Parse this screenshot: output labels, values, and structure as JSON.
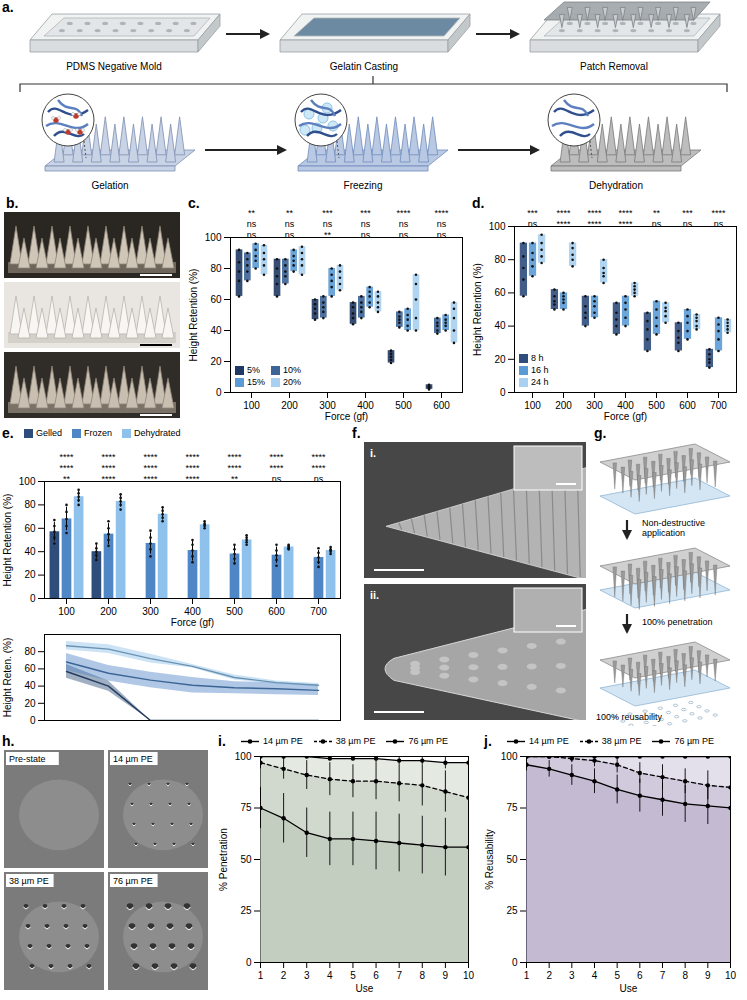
{
  "figure": {
    "a": {
      "panel": "a.",
      "steps": [
        "PDMS Negative Mold",
        "Gelatin Casting",
        "Patch Removal"
      ],
      "stages": [
        "Gelation",
        "Freezing",
        "Dehydration"
      ]
    },
    "b": {
      "panel": "b."
    },
    "f": {
      "panel": "f.",
      "images": [
        "i.",
        "ii."
      ]
    },
    "g": {
      "panel": "g.",
      "steps": [
        "Non-destructive application",
        "100% penetration",
        "100% reusability"
      ]
    },
    "h": {
      "panel": "h.",
      "images": [
        "Pre-state",
        "14 µm PE",
        "38 µm PE",
        "76 µm PE"
      ]
    }
  },
  "chart_data": [
    {
      "panel": "c.",
      "type": "violin",
      "xlabel": "Force (gf)",
      "ylabel": "Height Retention (%)",
      "categories": [
        100,
        200,
        300,
        400,
        500,
        600
      ],
      "ylim": [
        0,
        100
      ],
      "yticks": [
        0,
        20,
        40,
        60,
        80,
        100
      ],
      "legend": "bottom-left",
      "series": [
        {
          "name": "5%",
          "color": "#1f3864",
          "points": [
            [
              62,
              72,
              78,
              84,
              92
            ],
            [
              62,
              70,
              75,
              80,
              86
            ],
            [
              47,
              51,
              54,
              57,
              60
            ],
            [
              44,
              48,
              51,
              55,
              58
            ],
            [
              19,
              21,
              23,
              25,
              27
            ],
            [
              2,
              3,
              3,
              4,
              5
            ]
          ]
        },
        {
          "name": "10%",
          "color": "#3c6496",
          "points": [
            [
              72,
              78,
              82,
              86,
              90
            ],
            [
              70,
              75,
              78,
              82,
              86
            ],
            [
              48,
              52,
              55,
              58,
              62
            ],
            [
              48,
              52,
              55,
              58,
              62
            ],
            [
              42,
              45,
              47,
              49,
              52
            ],
            [
              38,
              40,
              43,
              45,
              48
            ]
          ]
        },
        {
          "name": "15%",
          "color": "#5b9bd5",
          "points": [
            [
              80,
              85,
              88,
              92,
              96
            ],
            [
              78,
              82,
              85,
              88,
              92
            ],
            [
              62,
              68,
              72,
              76,
              80
            ],
            [
              55,
              58,
              62,
              65,
              68
            ],
            [
              40,
              43,
              47,
              50,
              54
            ],
            [
              40,
              43,
              45,
              47,
              50
            ]
          ]
        },
        {
          "name": "20%",
          "color": "#a9d0f0",
          "points": [
            [
              76,
              82,
              86,
              90,
              95
            ],
            [
              76,
              82,
              86,
              90,
              94
            ],
            [
              66,
              70,
              74,
              78,
              82
            ],
            [
              52,
              55,
              58,
              62,
              65
            ],
            [
              40,
              48,
              60,
              70,
              76
            ],
            [
              32,
              40,
              48,
              54,
              58
            ]
          ]
        }
      ],
      "significance": [
        [
          "**",
          "ns",
          "ns"
        ],
        [
          "**",
          "ns",
          "ns"
        ],
        [
          "***",
          "ns",
          "**"
        ],
        [
          "***",
          "ns",
          "ns"
        ],
        [
          "****",
          "ns",
          "ns"
        ],
        [
          "****",
          "ns",
          "ns"
        ]
      ]
    },
    {
      "panel": "d.",
      "type": "violin",
      "xlabel": "Force (gf)",
      "ylabel": "Height Retention (%)",
      "categories": [
        100,
        200,
        300,
        400,
        500,
        600,
        700
      ],
      "ylim": [
        0,
        100
      ],
      "yticks": [
        0,
        20,
        40,
        60,
        80,
        100
      ],
      "legend": "bottom-left",
      "series": [
        {
          "name": "8 h",
          "color": "#2e4d7b",
          "points": [
            [
              58,
              68,
              75,
              82,
              90
            ],
            [
              50,
              53,
              55,
              58,
              62
            ],
            [
              40,
              45,
              48,
              52,
              58
            ],
            [
              35,
              40,
              44,
              48,
              54
            ],
            [
              25,
              32,
              38,
              43,
              48
            ],
            [
              25,
              30,
              33,
              37,
              42
            ],
            [
              15,
              18,
              20,
              23,
              26
            ]
          ]
        },
        {
          "name": "16 h",
          "color": "#5b9bd5",
          "points": [
            [
              70,
              76,
              80,
              84,
              90
            ],
            [
              50,
              54,
              56,
              58,
              60
            ],
            [
              45,
              48,
              52,
              55,
              58
            ],
            [
              40,
              45,
              50,
              54,
              58
            ],
            [
              35,
              40,
              45,
              50,
              55
            ],
            [
              32,
              37,
              42,
              46,
              50
            ],
            [
              25,
              32,
              37,
              41,
              45
            ]
          ]
        },
        {
          "name": "24 h",
          "color": "#a9d0f0",
          "points": [
            [
              78,
              82,
              86,
              90,
              95
            ],
            [
              76,
              80,
              83,
              87,
              90
            ],
            [
              66,
              70,
              72,
              75,
              80
            ],
            [
              58,
              60,
              62,
              64,
              66
            ],
            [
              42,
              46,
              49,
              51,
              54
            ],
            [
              38,
              40,
              43,
              45,
              47
            ],
            [
              36,
              38,
              40,
              42,
              44
            ]
          ]
        }
      ],
      "significance": [
        [
          "***",
          "ns"
        ],
        [
          "****",
          "****"
        ],
        [
          "****",
          "****"
        ],
        [
          "****",
          "****"
        ],
        [
          "**",
          "ns"
        ],
        [
          "***",
          "ns"
        ],
        [
          "****",
          "ns"
        ]
      ]
    },
    {
      "panel": "e.",
      "type": "bar",
      "xlabel": "Force (gf)",
      "ylabel": "Height Retention (%)",
      "categories": [
        100,
        200,
        300,
        400,
        500,
        600,
        700
      ],
      "ylim": [
        0,
        100
      ],
      "yticks": [
        0,
        20,
        40,
        60,
        80,
        100
      ],
      "legend": "top",
      "series": [
        {
          "name": "Gelled",
          "color": "#2e4d7b",
          "values": [
            57,
            40,
            0,
            0,
            0,
            0,
            0
          ],
          "errors": [
            8,
            6,
            0,
            0,
            0,
            0,
            0
          ],
          "points": [
            [
              47,
              52,
              57,
              62,
              67
            ],
            [
              33,
              37,
              40,
              43,
              47
            ],
            [],
            [],
            [],
            [],
            []
          ]
        },
        {
          "name": "Frozen",
          "color": "#4f86c6",
          "values": [
            68,
            55,
            47,
            41,
            38,
            37,
            35
          ],
          "errors": [
            10,
            9,
            9,
            9,
            7,
            7,
            6
          ],
          "points": [
            [
              56,
              62,
              68,
              74,
              80
            ],
            [
              45,
              50,
              55,
              60,
              66
            ],
            [
              36,
              42,
              47,
              52,
              58
            ],
            [
              31,
              36,
              41,
              46,
              50
            ],
            [
              30,
              34,
              38,
              42,
              46
            ],
            [
              28,
              33,
              37,
              41,
              46
            ],
            [
              27,
              31,
              35,
              39,
              43
            ]
          ]
        },
        {
          "name": "Dehydrated",
          "color": "#8ec1ec",
          "values": [
            87,
            83,
            72,
            63,
            50,
            44,
            41
          ],
          "errors": [
            5,
            5,
            5,
            2,
            3,
            2,
            2
          ],
          "points": [
            [
              80,
              84,
              87,
              90,
              93
            ],
            [
              76,
              80,
              83,
              86,
              89
            ],
            [
              66,
              69,
              72,
              75,
              78
            ],
            [
              60,
              62,
              63,
              64,
              66
            ],
            [
              46,
              48,
              50,
              52,
              54
            ],
            [
              42,
              43,
              44,
              45,
              46
            ],
            [
              38,
              40,
              41,
              42,
              44
            ]
          ]
        }
      ],
      "significance": [
        [
          "****",
          "****",
          "**"
        ],
        [
          "****",
          "****",
          "****"
        ],
        [
          "****",
          "****",
          "****"
        ],
        [
          "****",
          "****",
          "****"
        ],
        [
          "****",
          "****",
          "**"
        ],
        [
          "****",
          "****",
          "ns"
        ],
        [
          "****",
          "****",
          "ns"
        ]
      ]
    },
    {
      "type": "line",
      "ylabel": "Height Reten. (%)",
      "categories": [
        100,
        200,
        300,
        400,
        500,
        600,
        700
      ],
      "ylim": [
        0,
        100
      ],
      "yticks": [
        0,
        20,
        40,
        60,
        80
      ],
      "tick_labels": "y",
      "series": [
        {
          "color": "#2e4d7b",
          "values": [
            57,
            40,
            0,
            0,
            0,
            0,
            0
          ],
          "errors": [
            8,
            6,
            0,
            0,
            0,
            0,
            0
          ]
        },
        {
          "color": "#4f86c6",
          "values": [
            68,
            55,
            47,
            41,
            38,
            37,
            35
          ],
          "errors": [
            10,
            9,
            9,
            9,
            7,
            7,
            6
          ]
        },
        {
          "color": "#8ec1ec",
          "values": [
            87,
            83,
            72,
            63,
            50,
            44,
            41
          ],
          "errors": [
            5,
            5,
            5,
            2,
            3,
            2,
            2
          ]
        }
      ]
    },
    {
      "panel": "i.",
      "type": "line",
      "xlabel": "Use",
      "ylabel": "% Penetration",
      "color": "#a7b59f",
      "x": [
        1,
        2,
        3,
        4,
        5,
        6,
        7,
        8,
        9,
        10
      ],
      "xlim": [
        1,
        10
      ],
      "xticks": [
        1,
        2,
        3,
        4,
        5,
        6,
        7,
        8,
        9,
        10
      ],
      "ylim": [
        0,
        100
      ],
      "yticks": [
        0,
        25,
        50,
        75,
        100
      ],
      "legend": "top",
      "series": [
        {
          "name": "14 µm PE",
          "color": "#000000",
          "marker": "circle",
          "line_style": "solid",
          "values": [
            100,
            100,
            100,
            99,
            99,
            99,
            98,
            98,
            97,
            97
          ],
          "errors": [
            0,
            0,
            1,
            1,
            1,
            2,
            2,
            2,
            3,
            3
          ]
        },
        {
          "name": "38 µm PE",
          "color": "#000000",
          "marker": "circle",
          "line_style": "dashed",
          "values": [
            97,
            94,
            91,
            89,
            88,
            88,
            87,
            86,
            83,
            80
          ],
          "errors": [
            3,
            5,
            7,
            8,
            8,
            9,
            9,
            10,
            10,
            10
          ]
        },
        {
          "name": "76 µm PE",
          "color": "#000000",
          "marker": "circle",
          "line_style": "solid",
          "values": [
            75,
            70,
            63,
            60,
            60,
            59,
            58,
            57,
            56,
            56
          ],
          "errors": [
            10,
            12,
            12,
            13,
            13,
            14,
            14,
            14,
            14,
            14
          ]
        }
      ]
    },
    {
      "panel": "j.",
      "type": "line",
      "xlabel": "Use",
      "ylabel": "% Reusability",
      "color": "#a698bd",
      "x": [
        1,
        2,
        3,
        4,
        5,
        6,
        7,
        8,
        9,
        10
      ],
      "xlim": [
        1,
        10
      ],
      "xticks": [
        1,
        2,
        3,
        4,
        5,
        6,
        7,
        8,
        9,
        10
      ],
      "ylim": [
        0,
        100
      ],
      "yticks": [
        0,
        25,
        50,
        75,
        100
      ],
      "legend": "top",
      "series": [
        {
          "name": "14 µm PE",
          "color": "#000000",
          "marker": "circle",
          "line_style": "solid",
          "values": [
            100,
            100,
            100,
            100,
            100,
            100,
            100,
            100,
            100,
            100
          ],
          "errors": [
            0,
            0,
            0,
            0,
            0,
            0,
            0,
            0,
            0,
            0
          ]
        },
        {
          "name": "38 µm PE",
          "color": "#000000",
          "marker": "circle",
          "line_style": "dashed",
          "values": [
            100,
            100,
            99,
            98,
            96,
            92,
            90,
            88,
            86,
            85
          ],
          "errors": [
            0,
            1,
            2,
            3,
            4,
            5,
            6,
            6,
            7,
            7
          ]
        },
        {
          "name": "76 µm PE",
          "color": "#000000",
          "marker": "circle",
          "line_style": "solid",
          "values": [
            96,
            94,
            91,
            88,
            84,
            81,
            79,
            77,
            76,
            75
          ],
          "errors": [
            3,
            4,
            5,
            6,
            7,
            8,
            8,
            9,
            9,
            9
          ]
        }
      ]
    }
  ]
}
